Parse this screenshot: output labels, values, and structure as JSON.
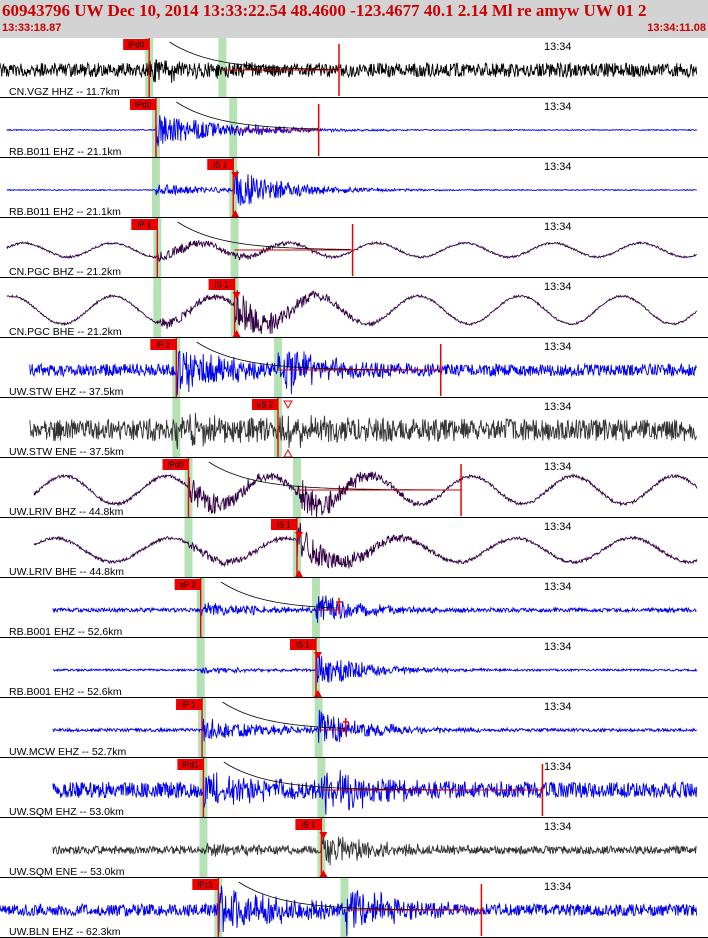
{
  "header": {
    "title": "60943796 UW Dec 10, 2014 13:33:22.54    48.4600 -123.4677 40.1 2.14 Ml re amyw UW 01    2",
    "time_start": "13:33:18.87",
    "time_end": "13:34:11.08"
  },
  "colors": {
    "header_bg": "#d3d3d3",
    "header_text": "#cc0000",
    "blue_trace": "#0000ee",
    "purple_trace": "#330044",
    "gray_trace": "#333333",
    "black_trace": "#000000",
    "pick_band": "#b5e2b5",
    "pick_flag": "#ee0000",
    "coda_line": "#cc0000"
  },
  "chart_data": {
    "type": "line",
    "x_unit": "seconds",
    "time_range": [
      "13:33:18.87",
      "13:34:11.08"
    ],
    "time_span_s": 52.21,
    "minute_tick": {
      "label": "13:34",
      "t": 41.13
    },
    "traces": [
      {
        "label": "CN.VGZ HHZ -- 11.7km",
        "color": "black",
        "p": 11.0,
        "s": 16.4,
        "flag": "iPd0",
        "flag_on": "p",
        "tMin": 0.0,
        "tMax": 52.21,
        "ampBg": 7,
        "burst": 9,
        "sBurst": 0,
        "lpAmp": 0,
        "coda_end": 25.0,
        "marker": "tick"
      },
      {
        "label": "RB.B011 EHZ -- 21.1km",
        "color": "blue",
        "p": 11.5,
        "s": 17.2,
        "flag": "iPd0",
        "flag_on": "p",
        "tMin": 0.5,
        "tMax": 52.21,
        "ampBg": 0.5,
        "burst": 17,
        "sBurst": 4,
        "lpAmp": 0,
        "coda_end": 23.5,
        "marker": "tick"
      },
      {
        "label": "RB.B011 EH2 -- 21.1km",
        "color": "blue",
        "p": 11.5,
        "s": 17.2,
        "flag": "iS 1",
        "flag_on": "s",
        "tMin": 0.5,
        "tMax": 52.21,
        "ampBg": 0.5,
        "burst": 6,
        "sBurst": 21,
        "lpAmp": 0,
        "coda_end": 0,
        "marker": "triangle"
      },
      {
        "label": "CN.PGC BHZ -- 21.2km",
        "color": "purple",
        "p": 11.6,
        "s": 17.3,
        "flag": "iP 1",
        "flag_on": "p",
        "tMin": 0.5,
        "tMax": 52.21,
        "ampBg": 1,
        "burst": 6,
        "sBurst": 3,
        "lpAmp": 7,
        "coda_end": 26.0,
        "marker": "tick"
      },
      {
        "label": "CN.PGC BHE -- 21.2km",
        "color": "purple",
        "p": 11.6,
        "s": 17.3,
        "flag": "iS 1",
        "flag_on": "s",
        "tMin": 0.5,
        "tMax": 52.21,
        "ampBg": 1,
        "burst": 6,
        "sBurst": 20,
        "lpAmp": 14,
        "coda_end": 0,
        "marker": "triangle"
      },
      {
        "label": "UW.STW EHZ -- 37.5km",
        "color": "blue",
        "p": 13.0,
        "s": 20.5,
        "flag": "iP 1",
        "flag_on": "p",
        "tMin": 2.2,
        "tMax": 52.21,
        "ampBg": 6,
        "burst": 22,
        "sBurst": 22,
        "lpAmp": 0,
        "coda_end": 32.5,
        "marker": "tick"
      },
      {
        "label": "UW.STW ENE -- 37.5km",
        "color": "gray",
        "p": 13.0,
        "s": 20.5,
        "flag": "eS 2",
        "flag_on": "s",
        "tMin": 2.2,
        "tMax": 52.21,
        "ampBg": 11,
        "burst": 10,
        "sBurst": 14,
        "lpAmp": 0,
        "coda_end": 0,
        "marker": "open-triangle"
      },
      {
        "label": "UW.LRIV BHZ -- 44.8km",
        "color": "purple",
        "p": 13.9,
        "s": 21.9,
        "flag": "iPd0",
        "flag_on": "p",
        "tMin": 2.5,
        "tMax": 52.21,
        "ampBg": 1.5,
        "burst": 14,
        "sBurst": 18,
        "lpAmp": 14,
        "coda_end": 34.0,
        "marker": "tick"
      },
      {
        "label": "UW.LRIV BHE -- 44.8km",
        "color": "purple",
        "p": 13.9,
        "s": 21.9,
        "flag": "iS 1",
        "flag_on": "s",
        "tMin": 2.5,
        "tMax": 52.21,
        "ampBg": 1.5,
        "burst": 5,
        "sBurst": 20,
        "lpAmp": 12,
        "coda_end": 0,
        "marker": "triangle"
      },
      {
        "label": "RB.B001 EHZ -- 52.6km",
        "color": "blue",
        "p": 14.8,
        "s": 23.3,
        "flag": "eP 2",
        "flag_on": "p",
        "tMin": 3.9,
        "tMax": 55.5,
        "ampBg": 2,
        "burst": 7,
        "sBurst": 16,
        "lpAmp": 0,
        "coda_end": 25.0,
        "marker": "plus"
      },
      {
        "label": "RB.B001 EH2 -- 52.6km",
        "color": "blue",
        "p": 14.8,
        "s": 23.3,
        "flag": "iS 1",
        "flag_on": "s",
        "tMin": 3.9,
        "tMax": 55.5,
        "ampBg": 1,
        "burst": 3,
        "sBurst": 17,
        "lpAmp": 0,
        "coda_end": 0,
        "marker": "triangle"
      },
      {
        "label": "UW.MCW EHZ -- 52.7km",
        "color": "blue",
        "p": 14.9,
        "s": 23.5,
        "flag": "iP 1",
        "flag_on": "p",
        "tMin": 3.9,
        "tMax": 55.5,
        "ampBg": 1.5,
        "burst": 12,
        "sBurst": 18,
        "lpAmp": 0,
        "coda_end": 25.5,
        "marker": "plus"
      },
      {
        "label": "UW.SQM EHZ -- 53.0km",
        "color": "blue",
        "p": 15.0,
        "s": 23.7,
        "flag": "iPd1",
        "flag_on": "p",
        "tMin": 3.9,
        "tMax": 55.5,
        "ampBg": 8,
        "burst": 16,
        "sBurst": 22,
        "lpAmp": 0,
        "coda_end": 40.0,
        "marker": "tick"
      },
      {
        "label": "UW.SQM ENE -- 53.0km",
        "color": "gray",
        "p": 15.0,
        "s": 23.7,
        "flag": "iS 1",
        "flag_on": "s",
        "tMin": 3.9,
        "tMax": 55.5,
        "ampBg": 4,
        "burst": 4,
        "sBurst": 16,
        "lpAmp": 0,
        "coda_end": 0,
        "marker": "triangle"
      },
      {
        "label": "UW.BLN EHZ -- 62.3km",
        "color": "blue",
        "p": 16.1,
        "s": 25.4,
        "flag": "iPc1",
        "flag_on": "p",
        "tMin": 0.0,
        "tMax": 55.5,
        "ampBg": 6,
        "burst": 22,
        "sBurst": 22,
        "lpAmp": 0,
        "coda_end": 35.5,
        "marker": "tick"
      }
    ]
  }
}
